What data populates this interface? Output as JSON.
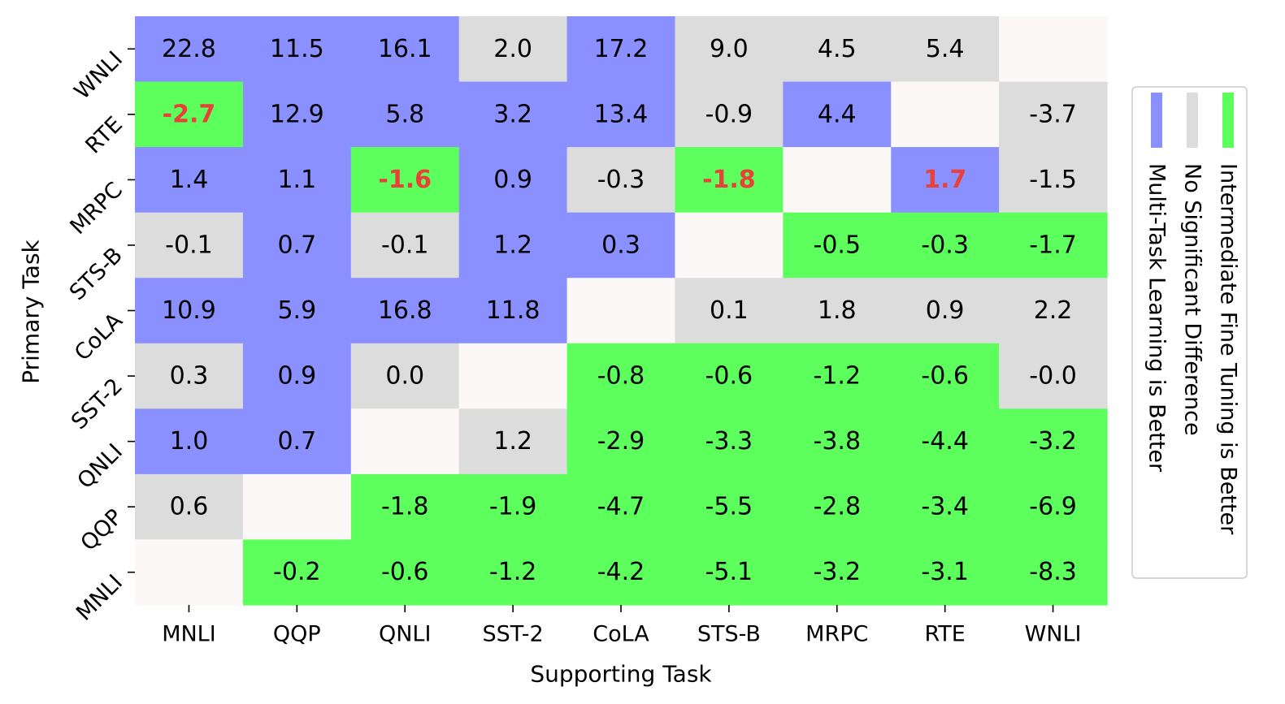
{
  "chart_data": {
    "type": "heatmap",
    "xlabel": "Supporting Task",
    "ylabel": "Primary Task",
    "x_categories": [
      "MNLI",
      "QQP",
      "QNLI",
      "SST-2",
      "CoLA",
      "STS-B",
      "MRPC",
      "RTE",
      "WNLI"
    ],
    "y_categories": [
      "WNLI",
      "RTE",
      "MRPC",
      "STS-B",
      "CoLA",
      "SST-2",
      "QNLI",
      "QQP",
      "MNLI"
    ],
    "values": [
      [
        "22.8",
        "11.5",
        "16.1",
        "2.0",
        "17.2",
        "9.0",
        "4.5",
        "5.4",
        ""
      ],
      [
        "-2.7",
        "12.9",
        "5.8",
        "3.2",
        "13.4",
        "-0.9",
        "4.4",
        "",
        "-3.7"
      ],
      [
        "1.4",
        "1.1",
        "-1.6",
        "0.9",
        "-0.3",
        "-1.8",
        "",
        "1.7",
        "-1.5"
      ],
      [
        "-0.1",
        "0.7",
        "-0.1",
        "1.2",
        "0.3",
        "",
        "-0.5",
        "-0.3",
        "-1.7"
      ],
      [
        "10.9",
        "5.9",
        "16.8",
        "11.8",
        "",
        "0.1",
        "1.8",
        "0.9",
        "2.2"
      ],
      [
        "0.3",
        "0.9",
        "0.0",
        "",
        "-0.8",
        "-0.6",
        "-1.2",
        "-0.6",
        "-0.0"
      ],
      [
        "1.0",
        "0.7",
        "",
        "1.2",
        "-2.9",
        "-3.3",
        "-3.8",
        "-4.4",
        "-3.2"
      ],
      [
        "0.6",
        "",
        "-1.8",
        "-1.9",
        "-4.7",
        "-5.5",
        "-2.8",
        "-3.4",
        "-6.9"
      ],
      [
        "",
        "-0.2",
        "-0.6",
        "-1.2",
        "-4.2",
        "-5.1",
        "-3.2",
        "-3.1",
        "-8.3"
      ]
    ],
    "categories_grid": [
      [
        "M",
        "M",
        "M",
        "N",
        "M",
        "N",
        "N",
        "N",
        "E"
      ],
      [
        "I",
        "M",
        "M",
        "M",
        "M",
        "N",
        "M",
        "E",
        "N"
      ],
      [
        "M",
        "M",
        "I",
        "M",
        "N",
        "I",
        "E",
        "M",
        "N"
      ],
      [
        "N",
        "M",
        "N",
        "M",
        "M",
        "E",
        "I",
        "I",
        "I"
      ],
      [
        "M",
        "M",
        "M",
        "M",
        "E",
        "N",
        "N",
        "N",
        "N"
      ],
      [
        "N",
        "M",
        "N",
        "E",
        "I",
        "I",
        "I",
        "I",
        "N"
      ],
      [
        "M",
        "M",
        "E",
        "N",
        "I",
        "I",
        "I",
        "I",
        "I"
      ],
      [
        "N",
        "E",
        "I",
        "I",
        "I",
        "I",
        "I",
        "I",
        "I"
      ],
      [
        "E",
        "I",
        "I",
        "I",
        "I",
        "I",
        "I",
        "I",
        "I"
      ]
    ],
    "highlighted_cells": [
      [
        1,
        0
      ],
      [
        2,
        2
      ],
      [
        2,
        5
      ],
      [
        2,
        7
      ]
    ],
    "category_colors": {
      "M": "#8a90ff",
      "N": "#dcdcdc",
      "I": "#5cff5c",
      "E": "#fdf8f8"
    },
    "highlight_text_color": "#e8413a",
    "legend": {
      "placement": "right",
      "items": [
        {
          "key": "M",
          "label": "Multi-Task Learning is Better"
        },
        {
          "key": "N",
          "label": "No Significant Difference"
        },
        {
          "key": "I",
          "label": "Intermediate Fine Tuning is Better"
        }
      ]
    }
  }
}
